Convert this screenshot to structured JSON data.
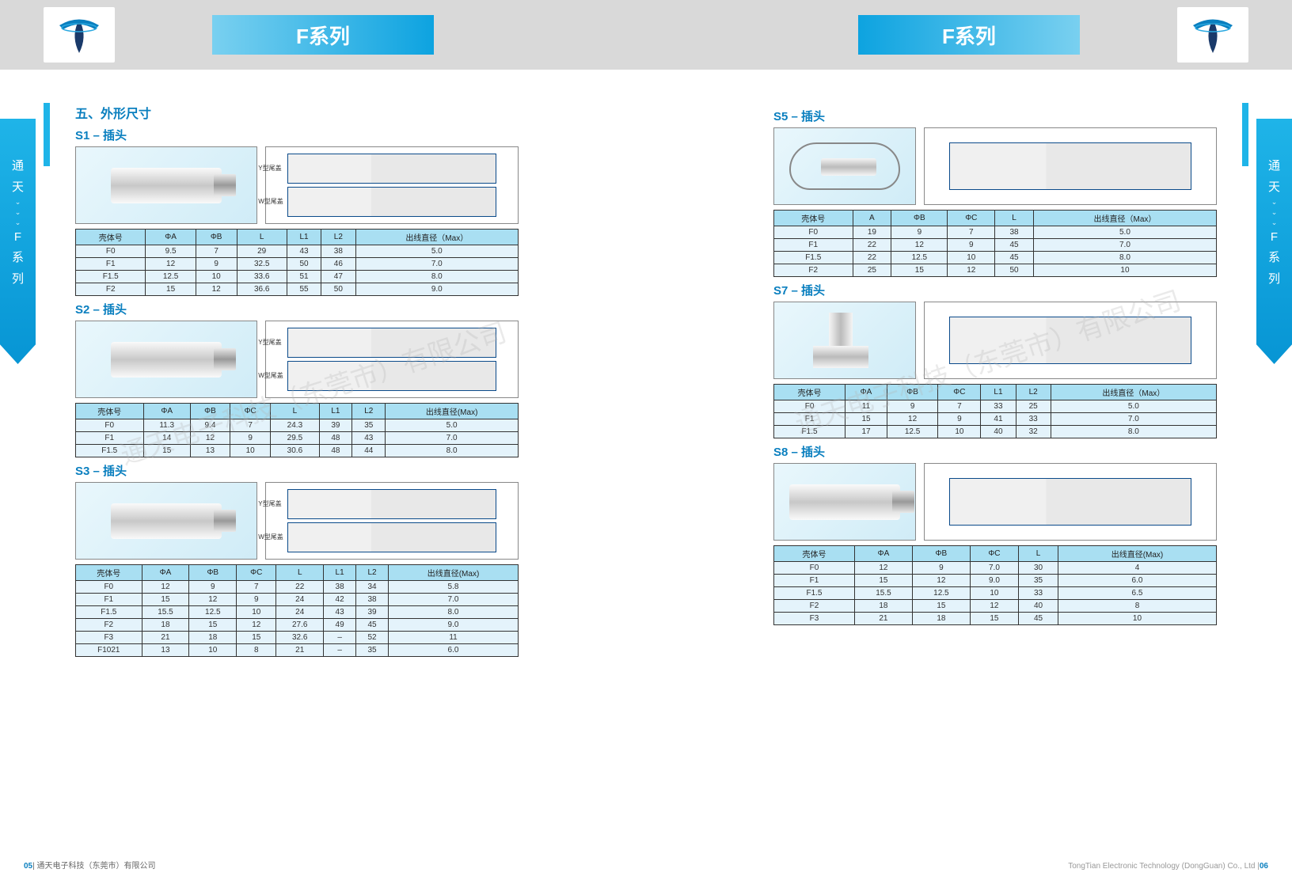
{
  "header": {
    "series_title": "F系列"
  },
  "sidebar": {
    "chars": [
      "通",
      "天",
      "F",
      "系",
      "列"
    ]
  },
  "page_left": {
    "num": "05",
    "company": "通天电子科技（东莞市）有限公司",
    "section_title": "五、外形尺寸",
    "sections": [
      {
        "title": "S1 – 插头",
        "diagram_labels": [
          "Y型尾盖",
          "W型尾盖"
        ],
        "columns": [
          "壳体号",
          "ΦA",
          "ΦB",
          "L",
          "L1",
          "L2",
          "出线直径（Max）"
        ],
        "rows": [
          [
            "F0",
            "9.5",
            "7",
            "29",
            "43",
            "38",
            "5.0"
          ],
          [
            "F1",
            "12",
            "9",
            "32.5",
            "50",
            "46",
            "7.0"
          ],
          [
            "F1.5",
            "12.5",
            "10",
            "33.6",
            "51",
            "47",
            "8.0"
          ],
          [
            "F2",
            "15",
            "12",
            "36.6",
            "55",
            "50",
            "9.0"
          ]
        ]
      },
      {
        "title": "S2 – 插头",
        "diagram_labels": [
          "Y型尾盖",
          "W型尾盖"
        ],
        "columns": [
          "壳体号",
          "ΦA",
          "ΦB",
          "ΦC",
          "L",
          "L1",
          "L2",
          "出线直径(Max)"
        ],
        "rows": [
          [
            "F0",
            "11.3",
            "9.4",
            "7",
            "24.3",
            "39",
            "35",
            "5.0"
          ],
          [
            "F1",
            "14",
            "12",
            "9",
            "29.5",
            "48",
            "43",
            "7.0"
          ],
          [
            "F1.5",
            "15",
            "13",
            "10",
            "30.6",
            "48",
            "44",
            "8.0"
          ]
        ]
      },
      {
        "title": "S3 – 插头",
        "diagram_labels": [
          "Y型尾盖",
          "W型尾盖"
        ],
        "columns": [
          "壳体号",
          "ΦA",
          "ΦB",
          "ΦC",
          "L",
          "L1",
          "L2",
          "出线直径(Max)"
        ],
        "rows": [
          [
            "F0",
            "12",
            "9",
            "7",
            "22",
            "38",
            "34",
            "5.8"
          ],
          [
            "F1",
            "15",
            "12",
            "9",
            "24",
            "42",
            "38",
            "7.0"
          ],
          [
            "F1.5",
            "15.5",
            "12.5",
            "10",
            "24",
            "43",
            "39",
            "8.0"
          ],
          [
            "F2",
            "18",
            "15",
            "12",
            "27.6",
            "49",
            "45",
            "9.0"
          ],
          [
            "F3",
            "21",
            "18",
            "15",
            "32.6",
            "–",
            "52",
            "11"
          ],
          [
            "F1021",
            "13",
            "10",
            "8",
            "21",
            "–",
            "35",
            "6.0"
          ]
        ]
      }
    ]
  },
  "page_right": {
    "num": "06",
    "company": "TongTian Electronic Technology (DongGuan) Co., Ltd",
    "sections": [
      {
        "title": "S5 – 插头",
        "shape": "lanyard",
        "columns": [
          "壳体号",
          "A",
          "ΦB",
          "ΦC",
          "L",
          "出线直径（Max）"
        ],
        "rows": [
          [
            "F0",
            "19",
            "9",
            "7",
            "38",
            "5.0"
          ],
          [
            "F1",
            "22",
            "12",
            "9",
            "45",
            "7.0"
          ],
          [
            "F1.5",
            "22",
            "12.5",
            "10",
            "45",
            "8.0"
          ],
          [
            "F2",
            "25",
            "15",
            "12",
            "50",
            "10"
          ]
        ]
      },
      {
        "title": "S7 – 插头",
        "shape": "elbow",
        "columns": [
          "壳体号",
          "ΦA",
          "ΦB",
          "ΦC",
          "L1",
          "L2",
          "出线直径（Max）"
        ],
        "rows": [
          [
            "F0",
            "11",
            "9",
            "7",
            "33",
            "25",
            "5.0"
          ],
          [
            "F1",
            "15",
            "12",
            "9",
            "41",
            "33",
            "7.0"
          ],
          [
            "F1.5",
            "17",
            "12.5",
            "10",
            "40",
            "32",
            "8.0"
          ]
        ]
      },
      {
        "title": "S8 – 插头",
        "shape": "connector",
        "columns": [
          "壳体号",
          "ΦA",
          "ΦB",
          "ΦC",
          "L",
          "出线直径(Max)"
        ],
        "rows": [
          [
            "F0",
            "12",
            "9",
            "7.0",
            "30",
            "4"
          ],
          [
            "F1",
            "15",
            "12",
            "9.0",
            "35",
            "6.0"
          ],
          [
            "F1.5",
            "15.5",
            "12.5",
            "10",
            "33",
            "6.5"
          ],
          [
            "F2",
            "18",
            "15",
            "12",
            "40",
            "8"
          ],
          [
            "F3",
            "21",
            "18",
            "15",
            "45",
            "10"
          ]
        ]
      }
    ]
  },
  "watermark": "通天电子科技（东莞市）有限公司",
  "colors": {
    "accent": "#0a7fbf",
    "tab_grad_top": "#1fb4e8",
    "tab_grad_bot": "#0795d4",
    "th_bg": "#a9dff2",
    "td_bg": "#e4f3fb",
    "topbar_bg": "#d9d9d9"
  }
}
